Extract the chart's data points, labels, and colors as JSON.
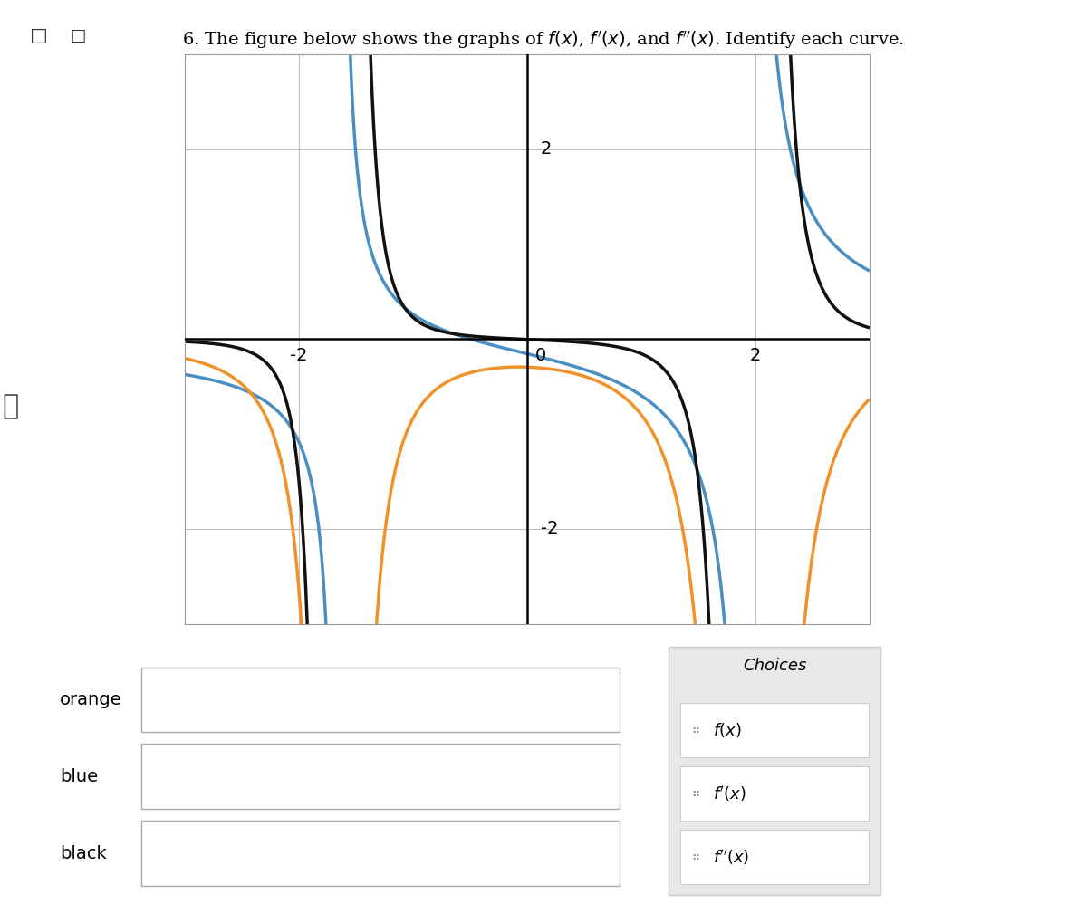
{
  "title": "6. The figure below shows the graphs of $f(x)$, $f'(x)$, and $f''(x)$. Identify each curve.",
  "xlim": [
    -3.0,
    3.0
  ],
  "ylim": [
    -2.8,
    2.8
  ],
  "xtick_positions": [
    -2,
    0,
    2
  ],
  "xtick_labels": [
    "-2",
    "0",
    "2"
  ],
  "ytick_positions": [
    2,
    -2
  ],
  "ytick_labels": [
    "2",
    "-2"
  ],
  "blue_color": "#4a8fc4",
  "orange_color": "#f0922b",
  "black_color": "#111111",
  "background_color": "#ffffff",
  "grid_color": "#bbbbbb",
  "answer_labels": [
    "orange",
    "blue",
    "black"
  ],
  "choices": [
    "$f(x)$",
    "$f'(x)$",
    "$f''(x)$"
  ],
  "asym1": -1.65,
  "asym2": 1.95,
  "clip_low": -3.5,
  "clip_high": 3.5
}
